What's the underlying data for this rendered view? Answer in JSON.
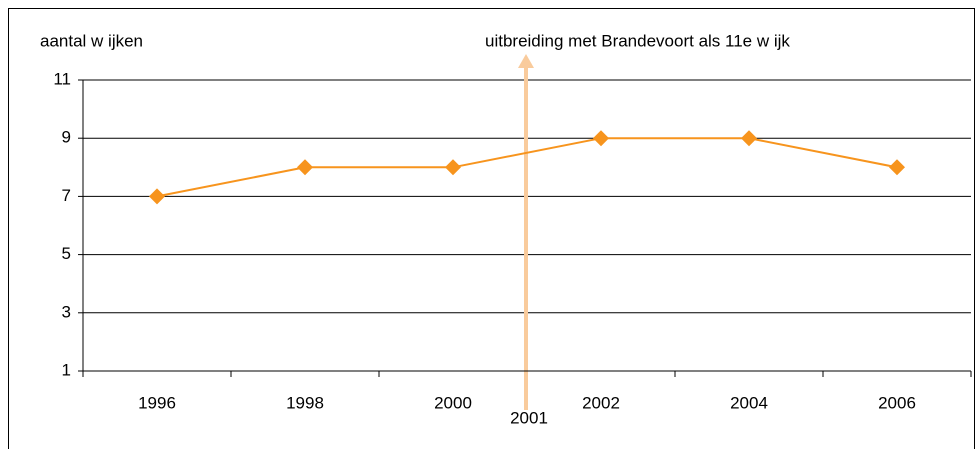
{
  "chart_data": {
    "type": "line",
    "y_label": "aantal w ijken",
    "annotation": {
      "text": "uitbreiding met Brandevoort als 11e w ijk",
      "x_label": "2001"
    },
    "categories": [
      "1996",
      "1998",
      "2000",
      "2002",
      "2004",
      "2006"
    ],
    "series": [
      {
        "name": "aantal wijken",
        "color": "#f7941d",
        "values": [
          7,
          8,
          8,
          9,
          9,
          8
        ]
      }
    ],
    "ylim": [
      1,
      11
    ],
    "yticks": [
      1,
      3,
      5,
      7,
      9,
      11
    ],
    "grid": true
  }
}
